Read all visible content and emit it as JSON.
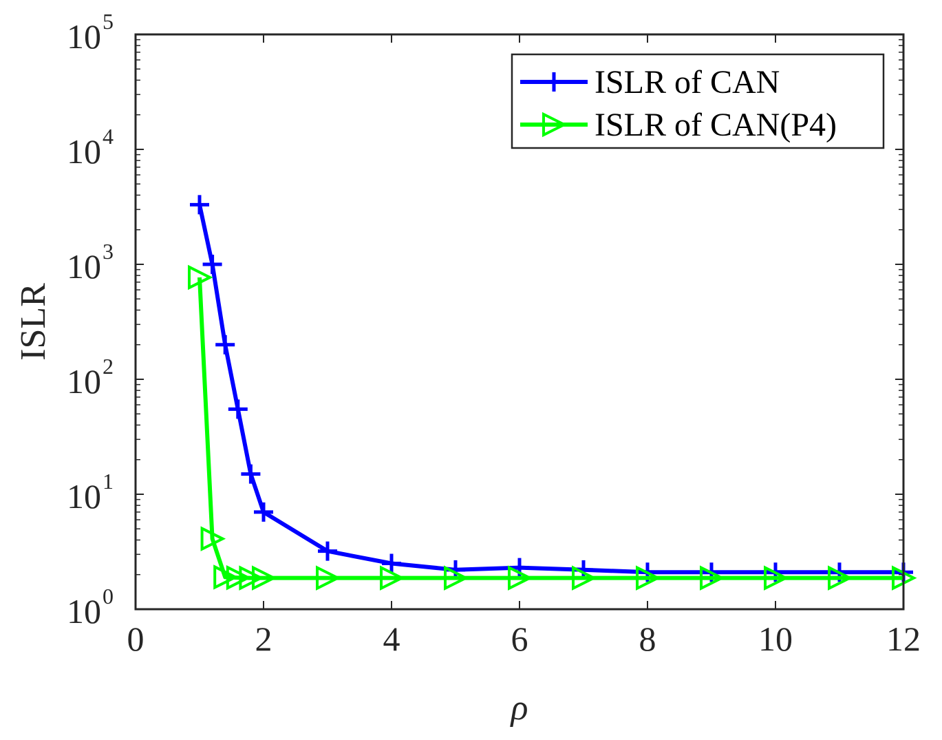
{
  "chart_data": {
    "type": "line",
    "title": "",
    "xlabel": "ρ",
    "ylabel": "ISLR",
    "xlim": [
      0,
      12
    ],
    "ylim": [
      1,
      100000
    ],
    "yscale": "log",
    "grid": false,
    "legend_position": "top-right",
    "x_ticks": [
      "0",
      "2",
      "4",
      "6",
      "8",
      "10",
      "12"
    ],
    "y_ticks": [
      {
        "base": "10",
        "exponent": "0"
      },
      {
        "base": "10",
        "exponent": "1"
      },
      {
        "base": "10",
        "exponent": "2"
      },
      {
        "base": "10",
        "exponent": "3"
      },
      {
        "base": "10",
        "exponent": "4"
      },
      {
        "base": "10",
        "exponent": "5"
      }
    ],
    "series": [
      {
        "name": "ISLR of CAN",
        "color": "#0000ff",
        "marker": "plus",
        "x": [
          1,
          1.2,
          1.4,
          1.6,
          1.8,
          2,
          3,
          4,
          5,
          6,
          7,
          8,
          9,
          10,
          11,
          12
        ],
        "y": [
          3300,
          1000,
          200,
          55,
          15,
          7,
          3.2,
          2.5,
          2.2,
          2.3,
          2.2,
          2.1,
          2.1,
          2.1,
          2.1,
          2.1
        ]
      },
      {
        "name": "ISLR of CAN(P4)",
        "color": "#00ff00",
        "marker": "triangle-right",
        "x": [
          1,
          1.2,
          1.4,
          1.6,
          1.8,
          2,
          3,
          4,
          5,
          6,
          7,
          8,
          9,
          10,
          11,
          12
        ],
        "y": [
          770,
          4.1,
          1.9,
          1.88,
          1.87,
          1.87,
          1.87,
          1.87,
          1.87,
          1.87,
          1.87,
          1.87,
          1.87,
          1.87,
          1.87,
          1.87
        ]
      }
    ]
  }
}
